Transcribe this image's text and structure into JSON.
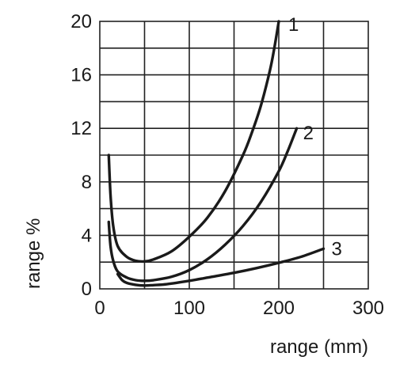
{
  "chart_data": {
    "type": "line",
    "xlabel": "range (mm)",
    "ylabel": "range %",
    "xlim": [
      0,
      300
    ],
    "ylim": [
      0,
      20
    ],
    "x_ticks": [
      0,
      100,
      200,
      300
    ],
    "y_ticks": [
      0,
      4,
      8,
      12,
      16,
      20
    ],
    "x_ticks_labels": [
      "0",
      "100",
      "200",
      "300"
    ],
    "y_ticks_labels": [
      "0",
      "4",
      "8",
      "12",
      "16",
      "20"
    ],
    "grid": true,
    "x_grid_step": 50,
    "y_grid_step": 2,
    "series": [
      {
        "name": "1",
        "x": [
          10,
          12,
          15,
          20,
          30,
          40,
          50,
          60,
          80,
          100,
          120,
          140,
          160,
          170,
          180,
          190,
          195,
          200
        ],
        "y": [
          10,
          7,
          4.7,
          3.2,
          2.4,
          2.1,
          2.05,
          2.2,
          2.8,
          3.9,
          5.3,
          7.3,
          10,
          11.7,
          13.7,
          16.3,
          18,
          20
        ]
      },
      {
        "name": "2",
        "x": [
          10,
          12,
          15,
          20,
          30,
          40,
          50,
          60,
          80,
          100,
          120,
          140,
          160,
          180,
          200,
          210,
          220
        ],
        "y": [
          5,
          3.2,
          2.1,
          1.3,
          0.85,
          0.65,
          0.6,
          0.65,
          0.9,
          1.4,
          2.2,
          3.3,
          4.7,
          6.5,
          8.8,
          10.3,
          12
        ]
      },
      {
        "name": "3",
        "x": [
          20,
          25,
          30,
          40,
          50,
          60,
          75,
          100,
          125,
          150,
          175,
          200,
          225,
          250
        ],
        "y": [
          1.1,
          0.65,
          0.45,
          0.3,
          0.25,
          0.28,
          0.35,
          0.6,
          0.9,
          1.2,
          1.55,
          1.95,
          2.4,
          3.0
        ]
      }
    ]
  }
}
